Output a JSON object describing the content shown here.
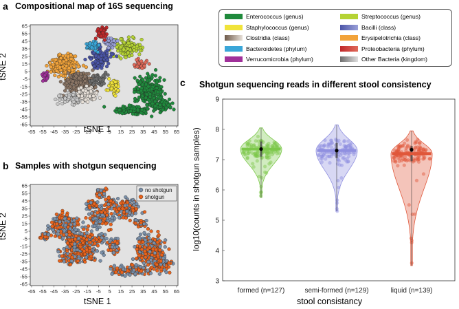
{
  "panels": {
    "a": {
      "letter": "a",
      "title": "Compositional map of 16S sequencing",
      "xlabel": "tSNE 1",
      "ylabel": "tSNE 2"
    },
    "b": {
      "letter": "b",
      "title": "Samples with shotgun sequencing",
      "xlabel": "tSNE 1",
      "ylabel": "tSNE 2"
    },
    "c": {
      "letter": "c",
      "title": "Shotgun sequencing reads in different stool consistency",
      "xlabel": "stool consistancy",
      "ylabel": "log10(counts in shotgun samples)"
    }
  },
  "legend_a": [
    {
      "label": "Enterococcus (genus)",
      "color": "#1f8a3c",
      "color2": "#1f8a3c"
    },
    {
      "label": "Streptococcus (genus)",
      "color": "#b5d334",
      "color2": "#b5d334"
    },
    {
      "label": "Staphylococcus (genus)",
      "color": "#f0e33a",
      "color2": "#f0e33a"
    },
    {
      "label": "Bacilli (class)",
      "color": "#4b55a8",
      "color2": "#9aa0d8"
    },
    {
      "label": "Clostridia (class)",
      "color": "#6e5a4a",
      "color2": "#e7e0d8"
    },
    {
      "label": "Erysipelotrichia (class)",
      "color": "#f2a33a",
      "color2": "#f2a33a"
    },
    {
      "label": "Bacteroidetes (phylum)",
      "color": "#3aa6d8",
      "color2": "#3aa6d8"
    },
    {
      "label": "Proteobacteria (phylum)",
      "color": "#c0282a",
      "color2": "#e06a5a"
    },
    {
      "label": "Verrucomicrobia (phylum)",
      "color": "#a0309a",
      "color2": "#a0309a"
    },
    {
      "label": "Other Bacteria (kingdom)",
      "color": "#6e6e6e",
      "color2": "#dedede"
    }
  ],
  "legend_b": [
    {
      "label": "no shotgun",
      "color": "#7a8fa8"
    },
    {
      "label": "shotgun",
      "color": "#e8631c"
    }
  ],
  "tsne_ticks": {
    "x": [
      "-65",
      "-55",
      "-45",
      "-35",
      "-25",
      "-15",
      "-5",
      "5",
      "15",
      "25",
      "35",
      "45",
      "55",
      "65"
    ],
    "y": [
      "65",
      "55",
      "45",
      "35",
      "25",
      "15",
      "5",
      "-5",
      "-15",
      "-25",
      "-35",
      "-45",
      "-55",
      "-65"
    ]
  },
  "chart_data": [
    {
      "type": "scatter",
      "title": "Compositional map of 16S sequencing",
      "xlabel": "tSNE 1",
      "ylabel": "tSNE 2",
      "xlim": [
        -65,
        65
      ],
      "ylim": [
        -65,
        65
      ],
      "grid": false,
      "legend": "separate-box-right",
      "series": [
        {
          "name": "Enterococcus (genus)",
          "color": "#1f8a3c",
          "x": [
            20,
            30,
            40,
            45,
            50,
            55,
            35,
            25,
            15,
            40
          ],
          "y": [
            5,
            0,
            -10,
            -20,
            -30,
            -35,
            -15,
            -25,
            -40,
            -5
          ]
        },
        {
          "name": "Streptococcus (genus)",
          "color": "#b5d334",
          "x": [
            15,
            20,
            25,
            30,
            18
          ],
          "y": [
            40,
            45,
            35,
            30,
            25
          ]
        },
        {
          "name": "Staphylococcus (genus)",
          "color": "#f0e33a",
          "x": [
            5,
            10,
            12
          ],
          "y": [
            -10,
            -15,
            -20
          ]
        },
        {
          "name": "Bacilli (class)",
          "color": "#4b55a8",
          "x": [
            0,
            5,
            -10,
            2
          ],
          "y": [
            20,
            30,
            15,
            45
          ]
        },
        {
          "name": "Clostridia (class)",
          "color": "#a89888",
          "x": [
            -30,
            -20,
            -25,
            -15,
            -35
          ],
          "y": [
            0,
            -5,
            10,
            -15,
            -20
          ]
        },
        {
          "name": "Erysipelotrichia (class)",
          "color": "#f2a33a",
          "x": [
            -40,
            -35,
            -30,
            -45
          ],
          "y": [
            10,
            20,
            25,
            5
          ]
        },
        {
          "name": "Bacteroidetes (phylum)",
          "color": "#3aa6d8",
          "x": [
            -10,
            -5,
            0
          ],
          "y": [
            35,
            40,
            30
          ]
        },
        {
          "name": "Proteobacteria (phylum)",
          "color": "#c0282a",
          "x": [
            -5,
            0,
            5
          ],
          "y": [
            55,
            60,
            50
          ]
        },
        {
          "name": "Verrucomicrobia (phylum)",
          "color": "#a0309a",
          "x": [
            -55,
            -50
          ],
          "y": [
            0,
            -5
          ]
        },
        {
          "name": "Other Bacteria (kingdom)",
          "color": "#9a9a9a",
          "x": [
            -20,
            -10,
            0
          ],
          "y": [
            -25,
            -30,
            -20
          ]
        }
      ]
    },
    {
      "type": "scatter",
      "title": "Samples with shotgun sequencing",
      "xlabel": "tSNE 1",
      "ylabel": "tSNE 2",
      "xlim": [
        -65,
        65
      ],
      "ylim": [
        -65,
        65
      ],
      "grid": false,
      "legend": "top-right",
      "series": [
        {
          "name": "no shotgun",
          "color": "#7a8fa8",
          "x": [
            -50,
            -30,
            0,
            20,
            40,
            50,
            10,
            -20
          ],
          "y": [
            -10,
            30,
            60,
            45,
            -20,
            -35,
            -50,
            -30
          ]
        },
        {
          "name": "shotgun",
          "color": "#e8631c",
          "x": [
            -40,
            -20,
            0,
            10,
            30,
            45,
            -10,
            20,
            -30,
            5
          ],
          "y": [
            10,
            20,
            35,
            0,
            -10,
            -30,
            -20,
            25,
            -5,
            -40
          ]
        }
      ]
    },
    {
      "type": "violin",
      "title": "Shotgun sequencing reads in different stool consistency",
      "xlabel": "stool consistancy",
      "ylabel": "log10(counts in shotgun samples)",
      "ylim": [
        3,
        9
      ],
      "yticks": [
        3,
        4,
        5,
        6,
        7,
        8,
        9
      ],
      "grid": false,
      "categories": [
        "formed (n=127)",
        "semi-formed (n=129)",
        "liquid (n=139)"
      ],
      "series": [
        {
          "name": "formed",
          "color": "#7cc84a",
          "n": 127,
          "min": 5.75,
          "max": 8.05,
          "median": 7.35,
          "mean": 7.35
        },
        {
          "name": "semi-formed",
          "color": "#8f8fe0",
          "n": 129,
          "min": 5.3,
          "max": 8.15,
          "median": 7.3,
          "mean": 7.3
        },
        {
          "name": "liquid",
          "color": "#e0573a",
          "n": 139,
          "min": 3.5,
          "max": 7.95,
          "median": 7.2,
          "mean": 7.33
        }
      ]
    }
  ]
}
